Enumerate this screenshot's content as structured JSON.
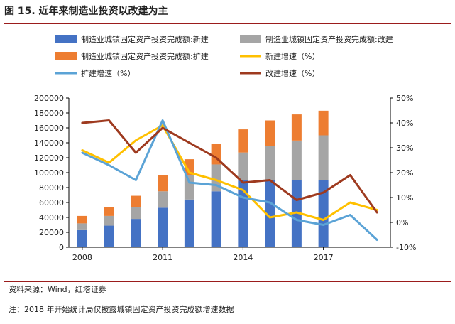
{
  "header": {
    "title": "图 15. 近年来制造业投资以改建为主"
  },
  "footer": {
    "source": "资料来源：Wind，红塔证券",
    "note": "注：2018 年开始统计局仅披露城镇固定资产投资完成额增速数据"
  },
  "colors": {
    "new": "#4472c4",
    "rebuild": "#a5a5a5",
    "expand": "#ed7d31",
    "new_growth": "#ffc000",
    "expand_growth": "#5ba3d6",
    "rebuild_growth": "#9e3a1f",
    "rule": "#9b1c1c"
  },
  "chart_data": {
    "type": "bar",
    "stacked": true,
    "title": "",
    "x": [
      2008,
      2009,
      2010,
      2011,
      2012,
      2013,
      2014,
      2015,
      2016,
      2017,
      2018,
      2019
    ],
    "x_tick_labels": [
      {
        "x": 2008,
        "label": "2008"
      },
      {
        "x": 2011,
        "label": "2011"
      },
      {
        "x": 2014,
        "label": "2014"
      },
      {
        "x": 2017,
        "label": "2017"
      }
    ],
    "y_left": {
      "min": 0,
      "max": 200000,
      "ticks": [
        0,
        20000,
        40000,
        60000,
        80000,
        100000,
        120000,
        140000,
        160000,
        180000,
        200000
      ]
    },
    "y_right": {
      "min": -10,
      "max": 50,
      "ticks": [
        -10,
        0,
        10,
        20,
        30,
        40,
        50
      ],
      "unit": "%"
    },
    "legend_position": "top",
    "bar_series": [
      {
        "name": "制造业城镇固定资产投资完成额:新建",
        "color_key": "new",
        "values": [
          23000,
          29000,
          38000,
          53000,
          64000,
          75000,
          90000,
          90000,
          90000,
          90000
        ]
      },
      {
        "name": "制造业城镇固定资产投资完成额:改建",
        "color_key": "rebuild",
        "values": [
          9000,
          13000,
          16000,
          22000,
          33000,
          36000,
          37000,
          46000,
          53000,
          60000
        ]
      },
      {
        "name": "制造业城镇固定资产投资完成额:扩建",
        "color_key": "expand",
        "values": [
          10000,
          12000,
          15000,
          22000,
          21000,
          28000,
          31000,
          34000,
          35000,
          33000
        ]
      }
    ],
    "line_series": [
      {
        "name": "新建增速（%）",
        "color_key": "new_growth",
        "values": [
          29,
          24,
          33,
          39,
          20,
          17,
          13,
          2,
          4,
          1,
          8,
          5
        ]
      },
      {
        "name": "扩建增速（%）",
        "color_key": "expand_growth",
        "values": [
          28,
          23,
          17,
          41,
          16,
          15,
          10,
          8,
          1,
          -1,
          3,
          -7
        ]
      },
      {
        "name": "改建增速（%）",
        "color_key": "rebuild_growth",
        "values": [
          40,
          41,
          28,
          38,
          32,
          26,
          16,
          17,
          9,
          12,
          19,
          4
        ]
      }
    ]
  }
}
